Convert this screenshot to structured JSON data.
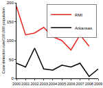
{
  "chart_data": {
    "type": "line",
    "y_label": "Case detection rate/100,000 population",
    "x": [
      2000,
      2001,
      2002,
      2003,
      2004,
      2005,
      2006,
      2007,
      2008,
      2009
    ],
    "series": [
      {
        "name": "RMI",
        "color": "#e8271f",
        "values": [
          190,
          115,
          120,
          135,
          110,
          100,
          75,
          115,
          85,
          null
        ]
      },
      {
        "name": "Arkansas",
        "color": "#000000",
        "values": [
          40,
          30,
          80,
          25,
          22,
          35,
          30,
          40,
          5,
          25
        ]
      }
    ],
    "xlim": [
      2000,
      2009
    ],
    "xticks": [
      2000,
      2001,
      2002,
      2003,
      2004,
      2005,
      2006,
      2007,
      2008,
      2009
    ],
    "ylim": [
      0,
      200
    ],
    "yticks": [
      0,
      50,
      100,
      150,
      200
    ],
    "grid": false,
    "legend": "top right"
  }
}
